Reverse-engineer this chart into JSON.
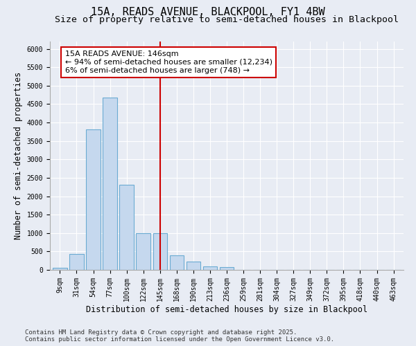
{
  "title_line1": "15A, READS AVENUE, BLACKPOOL, FY1 4BW",
  "title_line2": "Size of property relative to semi-detached houses in Blackpool",
  "xlabel": "Distribution of semi-detached houses by size in Blackpool",
  "ylabel": "Number of semi-detached properties",
  "footnote": "Contains HM Land Registry data © Crown copyright and database right 2025.\nContains public sector information licensed under the Open Government Licence v3.0.",
  "categories": [
    "9sqm",
    "31sqm",
    "54sqm",
    "77sqm",
    "100sqm",
    "122sqm",
    "145sqm",
    "168sqm",
    "190sqm",
    "213sqm",
    "236sqm",
    "259sqm",
    "281sqm",
    "304sqm",
    "327sqm",
    "349sqm",
    "372sqm",
    "395sqm",
    "418sqm",
    "440sqm",
    "463sqm"
  ],
  "bar_values": [
    50,
    430,
    3820,
    4680,
    2320,
    1000,
    1000,
    390,
    230,
    100,
    70,
    0,
    0,
    0,
    0,
    0,
    0,
    0,
    0,
    0,
    0
  ],
  "bar_color": "#c5d8ee",
  "bar_edge_color": "#6aabd2",
  "vline_x_idx": 6,
  "vline_color": "#cc0000",
  "annotation_text": "15A READS AVENUE: 146sqm\n← 94% of semi-detached houses are smaller (12,234)\n6% of semi-detached houses are larger (748) →",
  "annotation_box_color": "#ffffff",
  "annotation_box_edge": "#cc0000",
  "ylim": [
    0,
    6200
  ],
  "yticks": [
    0,
    500,
    1000,
    1500,
    2000,
    2500,
    3000,
    3500,
    4000,
    4500,
    5000,
    5500,
    6000
  ],
  "background_color": "#e8ecf4",
  "plot_background": "#e8ecf4",
  "grid_color": "#ffffff",
  "title_fontsize": 11,
  "subtitle_fontsize": 9.5,
  "axis_label_fontsize": 8.5,
  "tick_fontsize": 7,
  "annotation_fontsize": 8,
  "footnote_fontsize": 6.5
}
